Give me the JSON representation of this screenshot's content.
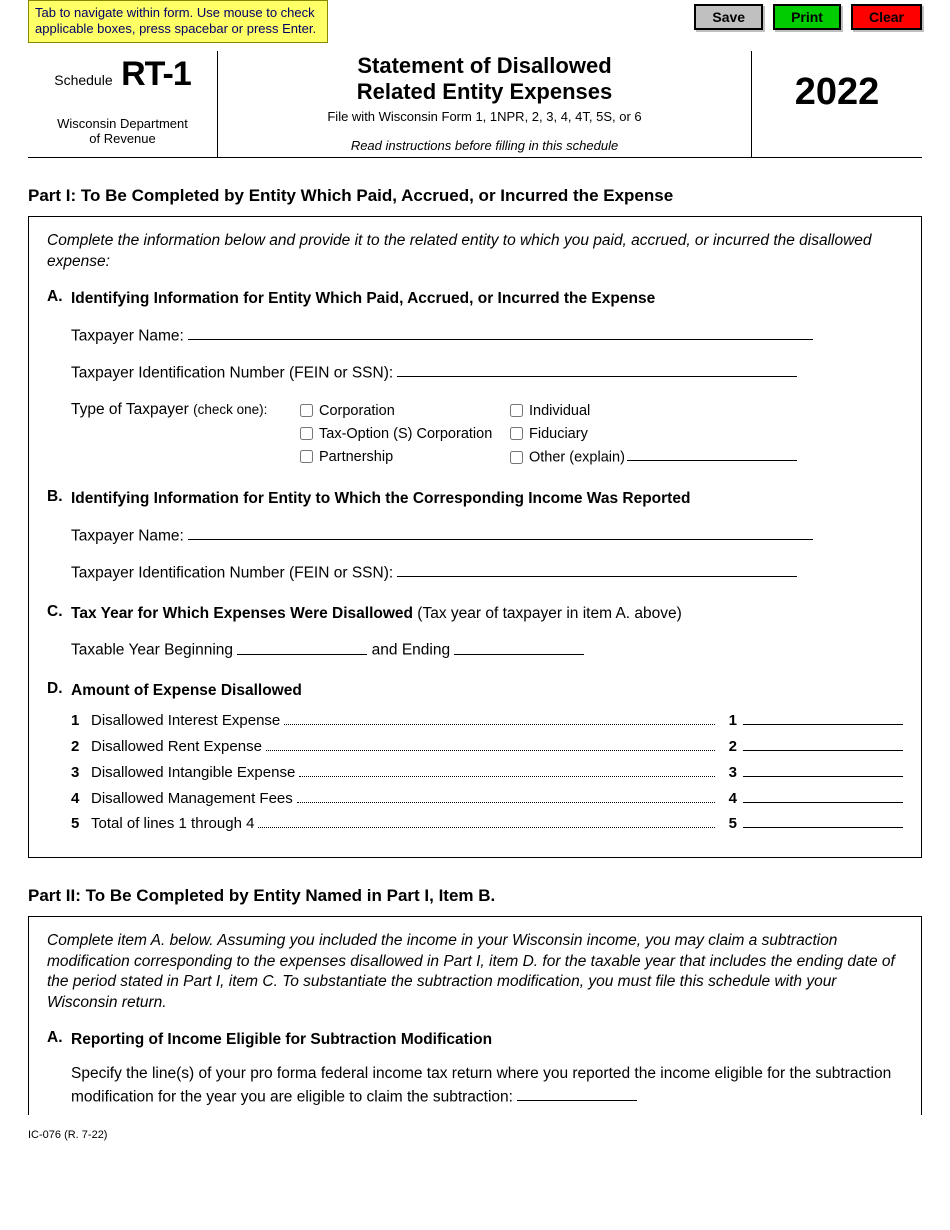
{
  "hint": "Tab to navigate within form. Use mouse to check applicable boxes, press spacebar or press Enter.",
  "buttons": {
    "save": "Save",
    "print": "Print",
    "clear": "Clear"
  },
  "header": {
    "schedule_word": "Schedule",
    "schedule_code": "RT-1",
    "dept1": "Wisconsin Department",
    "dept2": "of Revenue",
    "title1": "Statement of Disallowed",
    "title2": "Related Entity Expenses",
    "file_with": "File with Wisconsin Form 1, 1NPR, 2, 3, 4, 4T, 5S, or 6",
    "read_instr": "Read instructions before filling in this schedule",
    "year": "2022"
  },
  "part1": {
    "title": "Part I:  To Be Completed by Entity Which Paid, Accrued, or Incurred the Expense",
    "intro": "Complete the information below and provide it to the related entity to which you paid, accrued, or incurred the disallowed expense:",
    "A": {
      "letter": "A.",
      "title": "Identifying Information for Entity Which Paid, Accrued, or Incurred the Expense",
      "name_label": "Taxpayer Name:",
      "tin_label": "Taxpayer Identification Number (FEIN or SSN):",
      "type_label": "Type of Taxpayer",
      "check_one": "(check one):",
      "opts_col1": [
        "Corporation",
        "Tax-Option (S) Corporation",
        "Partnership"
      ],
      "opts_col2": [
        "Individual",
        "Fiduciary",
        "Other (explain)"
      ]
    },
    "B": {
      "letter": "B.",
      "title": "Identifying Information for Entity to Which the Corresponding Income Was Reported",
      "name_label": "Taxpayer Name:",
      "tin_label": "Taxpayer Identification Number (FEIN or SSN):"
    },
    "C": {
      "letter": "C.",
      "title": "Tax Year for Which Expenses Were Disallowed",
      "paren": " (Tax year of taxpayer in item A. above)",
      "yb": "Taxable Year Beginning",
      "end": " and Ending"
    },
    "D": {
      "letter": "D.",
      "title": "Amount of Expense Disallowed",
      "rows": [
        {
          "n": "1",
          "label": "Disallowed Interest Expense"
        },
        {
          "n": "2",
          "label": "Disallowed Rent Expense"
        },
        {
          "n": "3",
          "label": "Disallowed Intangible Expense"
        },
        {
          "n": "4",
          "label": "Disallowed Management Fees"
        },
        {
          "n": "5",
          "label": "Total of lines 1 through 4"
        }
      ]
    }
  },
  "part2": {
    "title": "Part II:  To Be Completed by Entity Named in Part I, Item B.",
    "intro": "Complete item A. below.  Assuming you included the income in your Wisconsin income, you may claim a subtraction modification corresponding to the expenses disallowed in Part I, item D. for the taxable year that includes the ending date of the period stated in Part I, item C.  To substantiate the subtraction modification, you must file this schedule with your Wisconsin return.",
    "A": {
      "letter": "A.",
      "title": "Reporting of Income Eligible for Subtraction Modification",
      "body": "Specify the line(s) of your pro forma federal income tax return where you reported the income eligible for the subtraction modification for the year you are eligible to claim the subtraction:"
    }
  },
  "footer": "IC-076 (R. 7-22)"
}
